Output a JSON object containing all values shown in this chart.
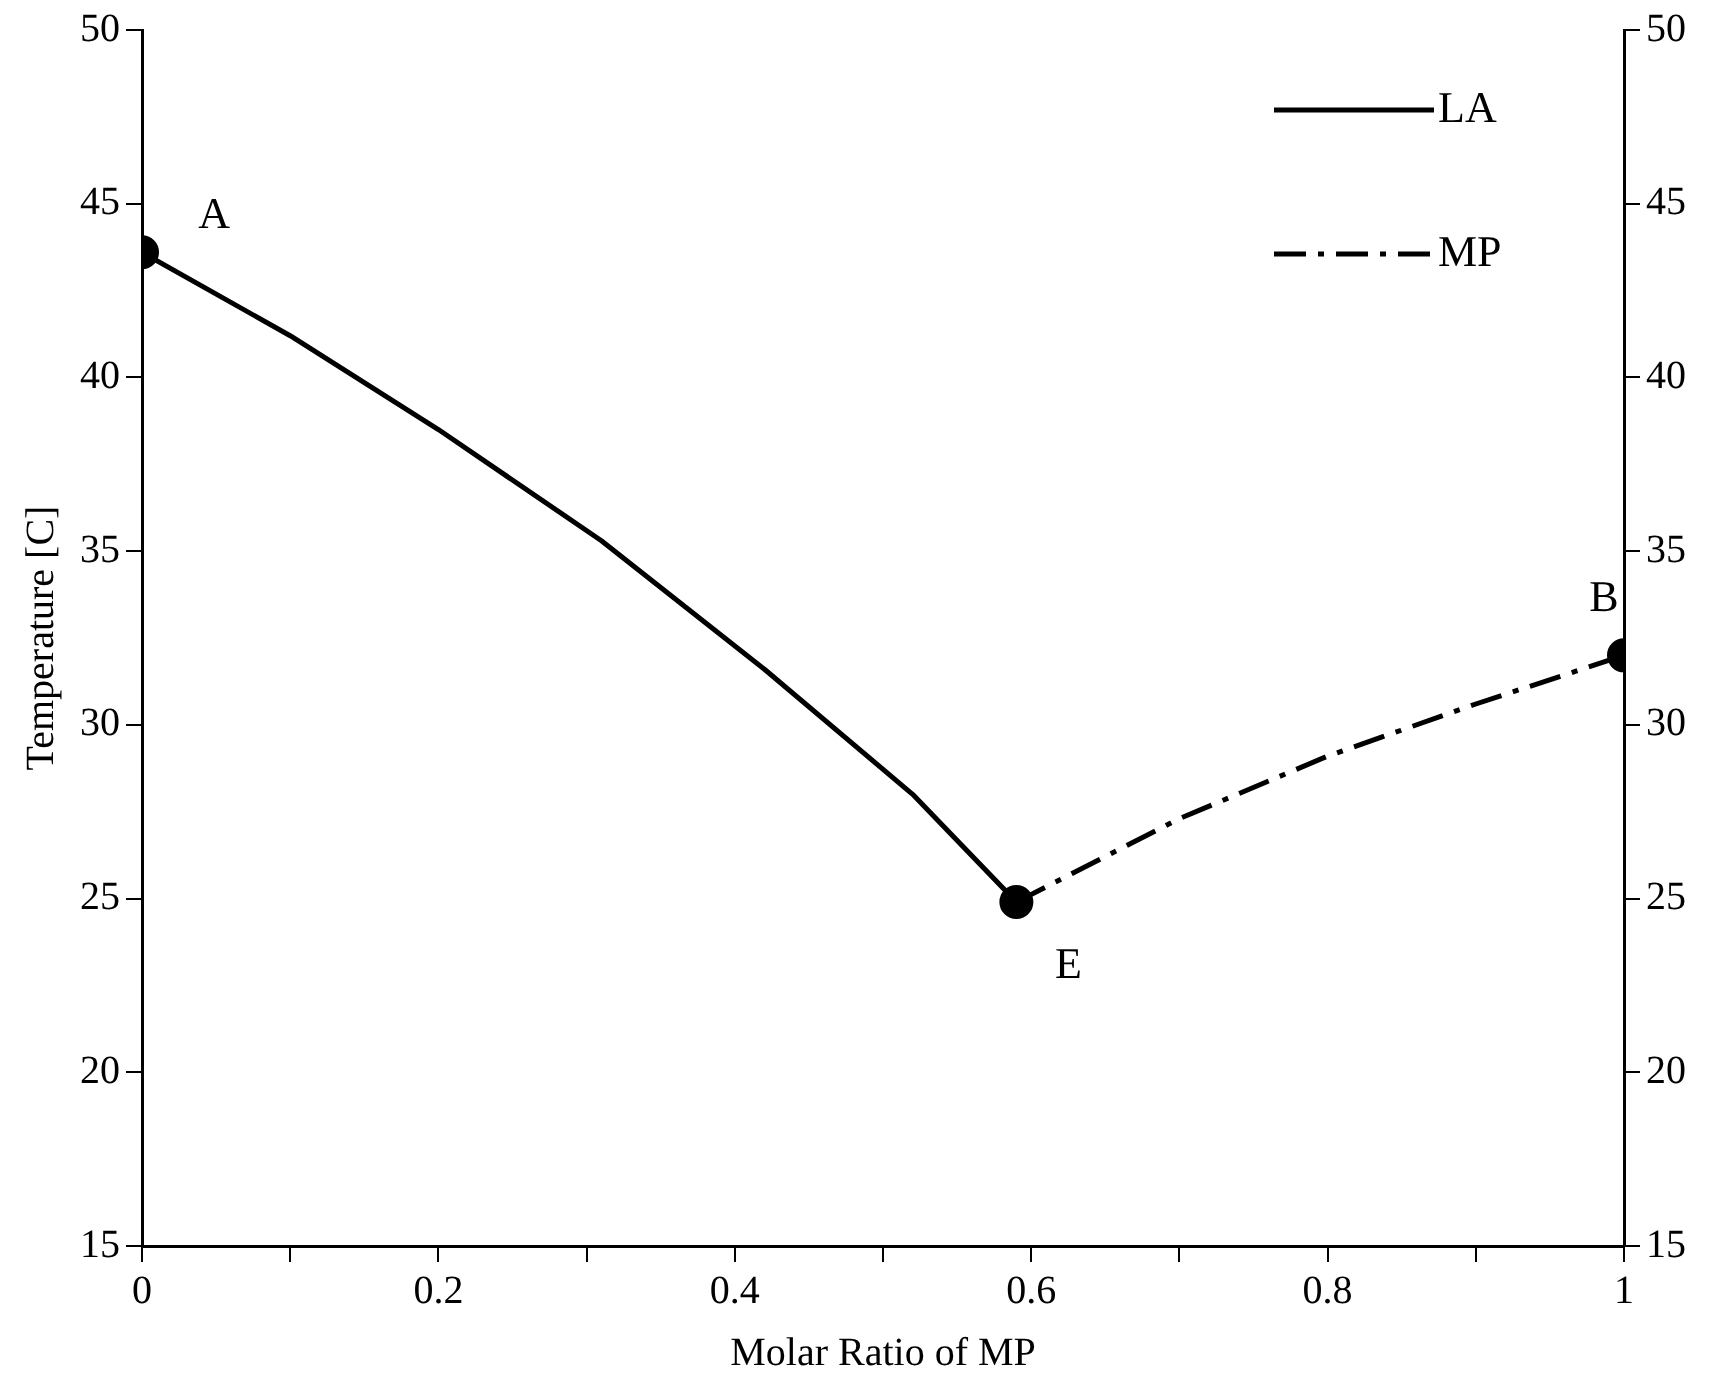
{
  "chart_data": {
    "type": "line",
    "xlabel": "Molar Ratio of MP",
    "ylabel": "Temperature [C]",
    "xlim": [
      0,
      1
    ],
    "xticks": [
      0,
      {
        "value": 0.1,
        "label": null
      },
      0.2,
      {
        "value": 0.3,
        "label": null
      },
      0.4,
      {
        "value": 0.5,
        "label": null
      },
      0.6,
      {
        "value": 0.7,
        "label": null
      },
      0.8,
      {
        "value": 0.9,
        "label": null
      },
      1
    ],
    "ylim": [
      15,
      50
    ],
    "yticks": [
      15,
      20,
      25,
      30,
      35,
      40,
      45,
      50
    ],
    "y2lim": [
      15,
      50
    ],
    "y2ticks": [
      15,
      20,
      25,
      30,
      35,
      40,
      45,
      50
    ],
    "grid": false,
    "legend": "top right",
    "marker": "none",
    "series": [
      {
        "name": "LA",
        "color": "#000000",
        "line_style": "solid",
        "x": [
          0,
          0.1,
          0.2,
          0.31,
          0.42,
          0.52,
          0.59
        ],
        "values": [
          43.6,
          41.2,
          38.5,
          35.3,
          31.6,
          28.0,
          24.9
        ]
      },
      {
        "name": "MP",
        "color": "#000000",
        "line_style": "dashdot",
        "x": [
          0.59,
          0.7,
          0.8,
          0.9,
          1
        ],
        "values": [
          24.9,
          27.3,
          29.1,
          30.6,
          32.0
        ]
      },
      {
        "type": "scatter",
        "color": "#000000",
        "marker": "circle",
        "x": [
          0,
          0.59,
          1
        ],
        "values": [
          43.6,
          24.9,
          32.0
        ]
      }
    ],
    "annotations": [
      {
        "text": "A",
        "x": 0,
        "y": 43.6
      },
      {
        "text": "E",
        "x": 0.59,
        "y": 24.9
      },
      {
        "text": "B",
        "x": 1,
        "y": 32.0
      }
    ]
  }
}
